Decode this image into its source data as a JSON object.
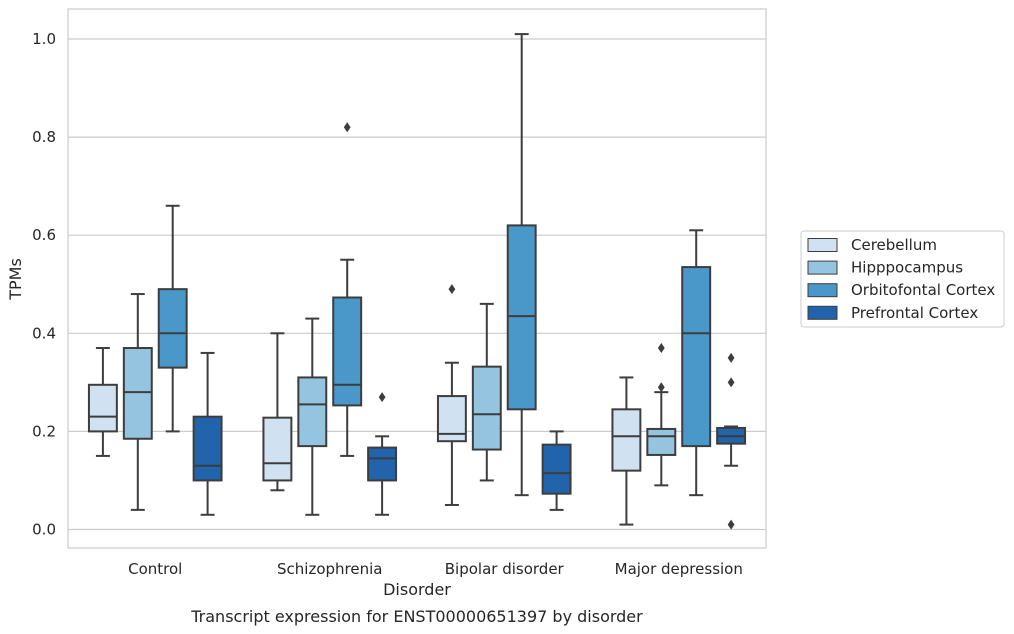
{
  "chart_data": {
    "type": "box",
    "caption": "Transcript expression for ENST00000651397 by disorder",
    "xlabel": "Disorder",
    "ylabel": "TPMs",
    "ylim": [
      -0.04,
      1.06
    ],
    "yticks": [
      "0.0",
      "0.2",
      "0.4",
      "0.6",
      "0.8",
      "1.0"
    ],
    "categories": [
      "Control",
      "Schizophrenia",
      "Bipolar disorder",
      "Major depression"
    ],
    "grid": true,
    "legend_position": "right",
    "series": [
      {
        "name": "Cerebellum",
        "color": "#d0e1f2",
        "boxes": [
          {
            "whislo": 0.15,
            "q1": 0.2,
            "med": 0.23,
            "q3": 0.295,
            "whishi": 0.37,
            "fliers": []
          },
          {
            "whislo": 0.08,
            "q1": 0.1,
            "med": 0.135,
            "q3": 0.228,
            "whishi": 0.4,
            "fliers": []
          },
          {
            "whislo": 0.05,
            "q1": 0.18,
            "med": 0.195,
            "q3": 0.272,
            "whishi": 0.34,
            "fliers": [
              0.49
            ]
          },
          {
            "whislo": 0.01,
            "q1": 0.12,
            "med": 0.19,
            "q3": 0.245,
            "whishi": 0.31,
            "fliers": []
          }
        ]
      },
      {
        "name": "Hipppocampus",
        "color": "#94c4df",
        "boxes": [
          {
            "whislo": 0.04,
            "q1": 0.185,
            "med": 0.28,
            "q3": 0.37,
            "whishi": 0.48,
            "fliers": []
          },
          {
            "whislo": 0.03,
            "q1": 0.17,
            "med": 0.255,
            "q3": 0.31,
            "whishi": 0.43,
            "fliers": []
          },
          {
            "whislo": 0.1,
            "q1": 0.163,
            "med": 0.235,
            "q3": 0.332,
            "whishi": 0.46,
            "fliers": []
          },
          {
            "whislo": 0.09,
            "q1": 0.152,
            "med": 0.19,
            "q3": 0.205,
            "whishi": 0.28,
            "fliers": [
              0.29,
              0.37
            ]
          }
        ]
      },
      {
        "name": "Orbitofontal Cortex",
        "color": "#4a98c9",
        "boxes": [
          {
            "whislo": 0.2,
            "q1": 0.33,
            "med": 0.4,
            "q3": 0.49,
            "whishi": 0.66,
            "fliers": []
          },
          {
            "whislo": 0.15,
            "q1": 0.253,
            "med": 0.295,
            "q3": 0.473,
            "whishi": 0.55,
            "fliers": [
              0.82
            ]
          },
          {
            "whislo": 0.07,
            "q1": 0.245,
            "med": 0.435,
            "q3": 0.62,
            "whishi": 1.01,
            "fliers": []
          },
          {
            "whislo": 0.07,
            "q1": 0.17,
            "med": 0.4,
            "q3": 0.535,
            "whishi": 0.61,
            "fliers": []
          }
        ]
      },
      {
        "name": "Prefrontal Cortex",
        "color": "#2164ab",
        "boxes": [
          {
            "whislo": 0.03,
            "q1": 0.1,
            "med": 0.13,
            "q3": 0.23,
            "whishi": 0.36,
            "fliers": []
          },
          {
            "whislo": 0.03,
            "q1": 0.1,
            "med": 0.145,
            "q3": 0.167,
            "whishi": 0.19,
            "fliers": [
              0.27
            ]
          },
          {
            "whislo": 0.04,
            "q1": 0.073,
            "med": 0.115,
            "q3": 0.173,
            "whishi": 0.2,
            "fliers": []
          },
          {
            "whislo": 0.13,
            "q1": 0.175,
            "med": 0.19,
            "q3": 0.207,
            "whishi": 0.21,
            "fliers": [
              0.01,
              0.3,
              0.35
            ]
          }
        ]
      }
    ]
  }
}
